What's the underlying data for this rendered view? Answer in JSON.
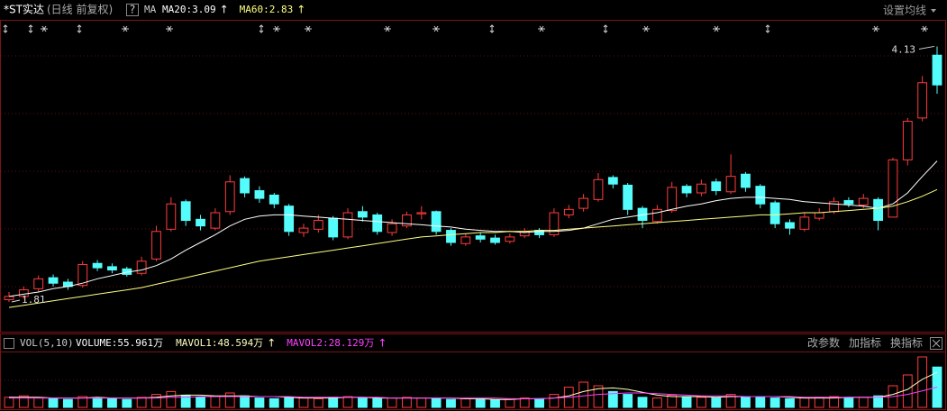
{
  "header": {
    "title": "*ST实达",
    "subtitle": "(日线 前复权)",
    "help": "?",
    "indicator": "MA",
    "settings": "设置均线"
  },
  "volume_header": {
    "indicator": "VOL(5,10)",
    "buttons": [
      "改参数",
      "加指标",
      "换指标"
    ]
  },
  "chart_data": [
    {
      "type": "candlestick",
      "up_color": "#ff3c3c",
      "down_color": "#54fcfc",
      "ylim": [
        1.54,
        4.24
      ],
      "open": [
        1.83,
        1.86,
        1.93,
        2.03,
        1.99,
        1.96,
        2.16,
        2.13,
        2.11,
        2.07,
        2.2,
        2.47,
        2.72,
        2.56,
        2.48,
        2.63,
        2.93,
        2.82,
        2.78,
        2.68,
        2.44,
        2.47,
        2.57,
        2.4,
        2.63,
        2.6,
        2.44,
        2.5,
        2.61,
        2.63,
        2.46,
        2.34,
        2.41,
        2.39,
        2.36,
        2.41,
        2.46,
        2.42,
        2.6,
        2.66,
        2.74,
        2.94,
        2.87,
        2.66,
        2.54,
        2.64,
        2.86,
        2.8,
        2.9,
        2.81,
        2.97,
        2.86,
        2.71,
        2.53,
        2.47,
        2.57,
        2.63,
        2.73,
        2.69,
        2.74,
        2.58,
        3.1,
        3.48,
        4.05
      ],
      "high": [
        1.9,
        1.95,
        2.05,
        2.06,
        2.02,
        2.18,
        2.19,
        2.16,
        2.13,
        2.22,
        2.5,
        2.76,
        2.74,
        2.6,
        2.66,
        2.96,
        2.95,
        2.86,
        2.8,
        2.7,
        2.52,
        2.6,
        2.59,
        2.66,
        2.68,
        2.62,
        2.56,
        2.63,
        2.68,
        2.64,
        2.48,
        2.43,
        2.44,
        2.42,
        2.43,
        2.48,
        2.48,
        2.66,
        2.69,
        2.79,
        2.98,
        2.96,
        2.89,
        2.68,
        2.69,
        2.9,
        2.88,
        2.92,
        2.93,
        3.15,
        2.99,
        2.88,
        2.73,
        2.56,
        2.62,
        2.66,
        2.76,
        2.76,
        2.79,
        2.76,
        3.12,
        3.48,
        3.86,
        4.13
      ],
      "low": [
        1.81,
        1.84,
        1.9,
        1.95,
        1.92,
        1.94,
        2.09,
        2.07,
        2.04,
        2.05,
        2.18,
        2.45,
        2.5,
        2.46,
        2.46,
        2.6,
        2.76,
        2.71,
        2.66,
        2.41,
        2.4,
        2.44,
        2.37,
        2.38,
        2.54,
        2.42,
        2.41,
        2.48,
        2.56,
        2.42,
        2.32,
        2.32,
        2.35,
        2.33,
        2.34,
        2.39,
        2.39,
        2.4,
        2.57,
        2.63,
        2.72,
        2.84,
        2.6,
        2.48,
        2.52,
        2.62,
        2.76,
        2.77,
        2.78,
        2.79,
        2.81,
        2.66,
        2.48,
        2.42,
        2.45,
        2.55,
        2.61,
        2.67,
        2.66,
        2.46,
        2.58,
        3.05,
        3.45,
        3.7
      ],
      "close": [
        1.86,
        1.92,
        2.02,
        1.98,
        1.95,
        2.15,
        2.12,
        2.1,
        2.06,
        2.18,
        2.45,
        2.7,
        2.55,
        2.5,
        2.62,
        2.9,
        2.8,
        2.75,
        2.7,
        2.45,
        2.48,
        2.55,
        2.4,
        2.62,
        2.58,
        2.45,
        2.52,
        2.6,
        2.62,
        2.45,
        2.35,
        2.4,
        2.38,
        2.35,
        2.4,
        2.45,
        2.42,
        2.62,
        2.65,
        2.75,
        2.92,
        2.88,
        2.65,
        2.55,
        2.65,
        2.85,
        2.8,
        2.88,
        2.82,
        2.95,
        2.85,
        2.7,
        2.52,
        2.48,
        2.58,
        2.62,
        2.72,
        2.7,
        2.75,
        2.55,
        3.1,
        3.45,
        3.8,
        3.78
      ],
      "max_label": 4.13,
      "min_label": 1.81,
      "series": [
        {
          "name": "MA20:3.09",
          "trend": "↑",
          "color": "#ffffff",
          "values": [
            1.86,
            1.88,
            1.9,
            1.93,
            1.95,
            1.98,
            2.02,
            2.05,
            2.08,
            2.1,
            2.14,
            2.2,
            2.28,
            2.35,
            2.42,
            2.5,
            2.56,
            2.59,
            2.6,
            2.6,
            2.59,
            2.58,
            2.57,
            2.56,
            2.55,
            2.54,
            2.53,
            2.52,
            2.51,
            2.5,
            2.49,
            2.47,
            2.46,
            2.45,
            2.45,
            2.44,
            2.45,
            2.45,
            2.46,
            2.48,
            2.52,
            2.56,
            2.58,
            2.6,
            2.62,
            2.65,
            2.68,
            2.7,
            2.73,
            2.75,
            2.76,
            2.76,
            2.75,
            2.74,
            2.72,
            2.71,
            2.7,
            2.69,
            2.68,
            2.66,
            2.7,
            2.8,
            2.95,
            3.09
          ]
        },
        {
          "name": "MA60:2.83",
          "trend": "↑",
          "color": "#ffff80",
          "values": [
            1.76,
            1.78,
            1.8,
            1.82,
            1.84,
            1.86,
            1.88,
            1.9,
            1.92,
            1.94,
            1.97,
            2.0,
            2.03,
            2.06,
            2.09,
            2.12,
            2.15,
            2.18,
            2.2,
            2.22,
            2.24,
            2.26,
            2.28,
            2.3,
            2.32,
            2.34,
            2.36,
            2.38,
            2.4,
            2.41,
            2.42,
            2.43,
            2.44,
            2.44,
            2.45,
            2.45,
            2.46,
            2.46,
            2.47,
            2.48,
            2.49,
            2.5,
            2.51,
            2.52,
            2.53,
            2.54,
            2.55,
            2.56,
            2.57,
            2.58,
            2.59,
            2.6,
            2.6,
            2.61,
            2.62,
            2.62,
            2.63,
            2.64,
            2.65,
            2.66,
            2.68,
            2.72,
            2.77,
            2.83
          ]
        }
      ]
    },
    {
      "type": "bar",
      "name": "VOLUME:55.961万",
      "ylim": [
        0,
        75
      ],
      "values": [
        14,
        16,
        13,
        12,
        11,
        15,
        13,
        12,
        11,
        14,
        18,
        22,
        17,
        14,
        15,
        20,
        16,
        13,
        12,
        14,
        13,
        12,
        14,
        15,
        13,
        12,
        13,
        14,
        13,
        12,
        11,
        12,
        11,
        10,
        12,
        13,
        12,
        18,
        28,
        35,
        30,
        22,
        18,
        14,
        13,
        17,
        15,
        14,
        13,
        18,
        15,
        14,
        13,
        12,
        13,
        14,
        15,
        13,
        14,
        16,
        30,
        45,
        70,
        55.961
      ],
      "series": [
        {
          "name": "MAVOL1:48.594万",
          "trend": "↑",
          "color": "#ffffc0",
          "values": [
            14,
            14,
            14,
            13,
            13,
            13,
            14,
            13,
            13,
            13,
            14,
            16,
            17,
            17,
            16,
            16,
            16,
            15,
            15,
            14,
            13,
            13,
            13,
            14,
            14,
            13,
            13,
            13,
            13,
            13,
            13,
            12,
            12,
            11,
            11,
            12,
            12,
            13,
            16,
            22,
            26,
            27,
            25,
            21,
            17,
            15,
            15,
            15,
            14,
            15,
            15,
            15,
            15,
            14,
            13,
            13,
            13,
            14,
            14,
            14,
            18,
            25,
            39,
            48.594
          ]
        },
        {
          "name": "MAVOL2:28.129万",
          "trend": "↑",
          "color": "#ff40ff",
          "values": [
            13,
            13,
            13,
            13,
            13,
            13,
            13,
            13,
            13,
            13,
            13,
            14,
            14,
            15,
            15,
            15,
            15,
            15,
            15,
            15,
            14,
            14,
            14,
            14,
            14,
            14,
            13,
            13,
            13,
            13,
            13,
            13,
            13,
            13,
            12,
            12,
            12,
            13,
            14,
            16,
            18,
            19,
            20,
            20,
            19,
            18,
            17,
            16,
            16,
            16,
            15,
            15,
            15,
            15,
            14,
            14,
            14,
            14,
            14,
            14,
            15,
            18,
            23,
            28.129
          ]
        }
      ]
    }
  ]
}
